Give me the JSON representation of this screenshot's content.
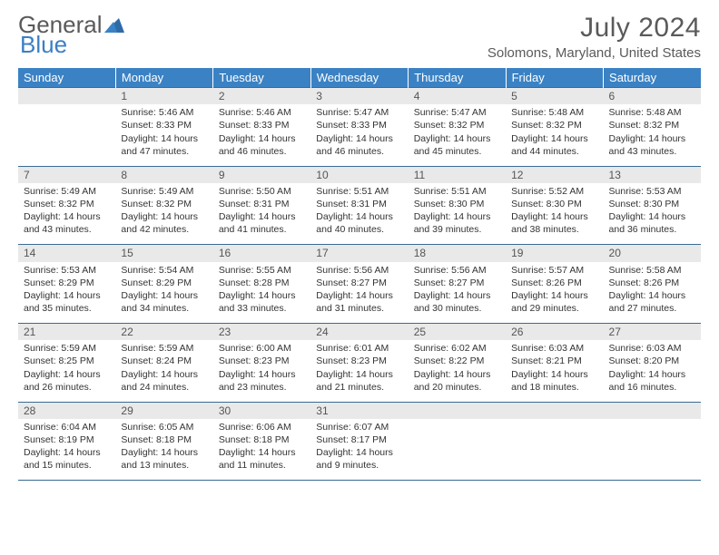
{
  "brand": {
    "part1": "General",
    "part2": "Blue"
  },
  "title": "July 2024",
  "location": "Solomons, Maryland, United States",
  "colors": {
    "header_bg": "#3b82c4",
    "header_text": "#ffffff",
    "daynum_bg": "#e9e9e9",
    "border": "#3b6a94",
    "text": "#333333",
    "title_text": "#5a5a5a"
  },
  "weekdays": [
    "Sunday",
    "Monday",
    "Tuesday",
    "Wednesday",
    "Thursday",
    "Friday",
    "Saturday"
  ],
  "weeks": [
    {
      "nums": [
        "",
        "1",
        "2",
        "3",
        "4",
        "5",
        "6"
      ],
      "cells": [
        null,
        {
          "sunrise": "Sunrise: 5:46 AM",
          "sunset": "Sunset: 8:33 PM",
          "daylight": "Daylight: 14 hours and 47 minutes."
        },
        {
          "sunrise": "Sunrise: 5:46 AM",
          "sunset": "Sunset: 8:33 PM",
          "daylight": "Daylight: 14 hours and 46 minutes."
        },
        {
          "sunrise": "Sunrise: 5:47 AM",
          "sunset": "Sunset: 8:33 PM",
          "daylight": "Daylight: 14 hours and 46 minutes."
        },
        {
          "sunrise": "Sunrise: 5:47 AM",
          "sunset": "Sunset: 8:32 PM",
          "daylight": "Daylight: 14 hours and 45 minutes."
        },
        {
          "sunrise": "Sunrise: 5:48 AM",
          "sunset": "Sunset: 8:32 PM",
          "daylight": "Daylight: 14 hours and 44 minutes."
        },
        {
          "sunrise": "Sunrise: 5:48 AM",
          "sunset": "Sunset: 8:32 PM",
          "daylight": "Daylight: 14 hours and 43 minutes."
        }
      ]
    },
    {
      "nums": [
        "7",
        "8",
        "9",
        "10",
        "11",
        "12",
        "13"
      ],
      "cells": [
        {
          "sunrise": "Sunrise: 5:49 AM",
          "sunset": "Sunset: 8:32 PM",
          "daylight": "Daylight: 14 hours and 43 minutes."
        },
        {
          "sunrise": "Sunrise: 5:49 AM",
          "sunset": "Sunset: 8:32 PM",
          "daylight": "Daylight: 14 hours and 42 minutes."
        },
        {
          "sunrise": "Sunrise: 5:50 AM",
          "sunset": "Sunset: 8:31 PM",
          "daylight": "Daylight: 14 hours and 41 minutes."
        },
        {
          "sunrise": "Sunrise: 5:51 AM",
          "sunset": "Sunset: 8:31 PM",
          "daylight": "Daylight: 14 hours and 40 minutes."
        },
        {
          "sunrise": "Sunrise: 5:51 AM",
          "sunset": "Sunset: 8:30 PM",
          "daylight": "Daylight: 14 hours and 39 minutes."
        },
        {
          "sunrise": "Sunrise: 5:52 AM",
          "sunset": "Sunset: 8:30 PM",
          "daylight": "Daylight: 14 hours and 38 minutes."
        },
        {
          "sunrise": "Sunrise: 5:53 AM",
          "sunset": "Sunset: 8:30 PM",
          "daylight": "Daylight: 14 hours and 36 minutes."
        }
      ]
    },
    {
      "nums": [
        "14",
        "15",
        "16",
        "17",
        "18",
        "19",
        "20"
      ],
      "cells": [
        {
          "sunrise": "Sunrise: 5:53 AM",
          "sunset": "Sunset: 8:29 PM",
          "daylight": "Daylight: 14 hours and 35 minutes."
        },
        {
          "sunrise": "Sunrise: 5:54 AM",
          "sunset": "Sunset: 8:29 PM",
          "daylight": "Daylight: 14 hours and 34 minutes."
        },
        {
          "sunrise": "Sunrise: 5:55 AM",
          "sunset": "Sunset: 8:28 PM",
          "daylight": "Daylight: 14 hours and 33 minutes."
        },
        {
          "sunrise": "Sunrise: 5:56 AM",
          "sunset": "Sunset: 8:27 PM",
          "daylight": "Daylight: 14 hours and 31 minutes."
        },
        {
          "sunrise": "Sunrise: 5:56 AM",
          "sunset": "Sunset: 8:27 PM",
          "daylight": "Daylight: 14 hours and 30 minutes."
        },
        {
          "sunrise": "Sunrise: 5:57 AM",
          "sunset": "Sunset: 8:26 PM",
          "daylight": "Daylight: 14 hours and 29 minutes."
        },
        {
          "sunrise": "Sunrise: 5:58 AM",
          "sunset": "Sunset: 8:26 PM",
          "daylight": "Daylight: 14 hours and 27 minutes."
        }
      ]
    },
    {
      "nums": [
        "21",
        "22",
        "23",
        "24",
        "25",
        "26",
        "27"
      ],
      "cells": [
        {
          "sunrise": "Sunrise: 5:59 AM",
          "sunset": "Sunset: 8:25 PM",
          "daylight": "Daylight: 14 hours and 26 minutes."
        },
        {
          "sunrise": "Sunrise: 5:59 AM",
          "sunset": "Sunset: 8:24 PM",
          "daylight": "Daylight: 14 hours and 24 minutes."
        },
        {
          "sunrise": "Sunrise: 6:00 AM",
          "sunset": "Sunset: 8:23 PM",
          "daylight": "Daylight: 14 hours and 23 minutes."
        },
        {
          "sunrise": "Sunrise: 6:01 AM",
          "sunset": "Sunset: 8:23 PM",
          "daylight": "Daylight: 14 hours and 21 minutes."
        },
        {
          "sunrise": "Sunrise: 6:02 AM",
          "sunset": "Sunset: 8:22 PM",
          "daylight": "Daylight: 14 hours and 20 minutes."
        },
        {
          "sunrise": "Sunrise: 6:03 AM",
          "sunset": "Sunset: 8:21 PM",
          "daylight": "Daylight: 14 hours and 18 minutes."
        },
        {
          "sunrise": "Sunrise: 6:03 AM",
          "sunset": "Sunset: 8:20 PM",
          "daylight": "Daylight: 14 hours and 16 minutes."
        }
      ]
    },
    {
      "nums": [
        "28",
        "29",
        "30",
        "31",
        "",
        "",
        ""
      ],
      "cells": [
        {
          "sunrise": "Sunrise: 6:04 AM",
          "sunset": "Sunset: 8:19 PM",
          "daylight": "Daylight: 14 hours and 15 minutes."
        },
        {
          "sunrise": "Sunrise: 6:05 AM",
          "sunset": "Sunset: 8:18 PM",
          "daylight": "Daylight: 14 hours and 13 minutes."
        },
        {
          "sunrise": "Sunrise: 6:06 AM",
          "sunset": "Sunset: 8:18 PM",
          "daylight": "Daylight: 14 hours and 11 minutes."
        },
        {
          "sunrise": "Sunrise: 6:07 AM",
          "sunset": "Sunset: 8:17 PM",
          "daylight": "Daylight: 14 hours and 9 minutes."
        },
        null,
        null,
        null
      ]
    }
  ]
}
